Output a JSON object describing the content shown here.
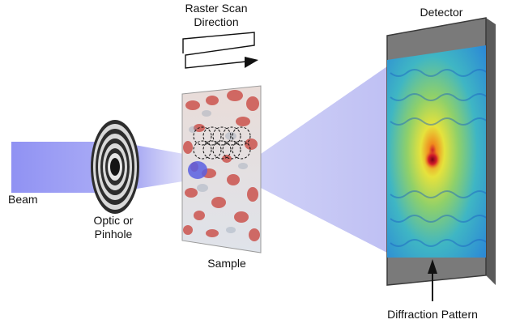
{
  "labels": {
    "raster_line1": "Raster Scan",
    "raster_line2": "Direction",
    "detector": "Detector",
    "beam": "Beam",
    "optic_line1": "Optic or",
    "optic_line2": "Pinhole",
    "sample": "Sample",
    "diffraction": "Diffraction Pattern"
  },
  "colors": {
    "beam": "#8a8cf2",
    "detector_frame": "#6d6d6d",
    "sample_red": "#c8413a",
    "hotspot": "#b0122a"
  }
}
